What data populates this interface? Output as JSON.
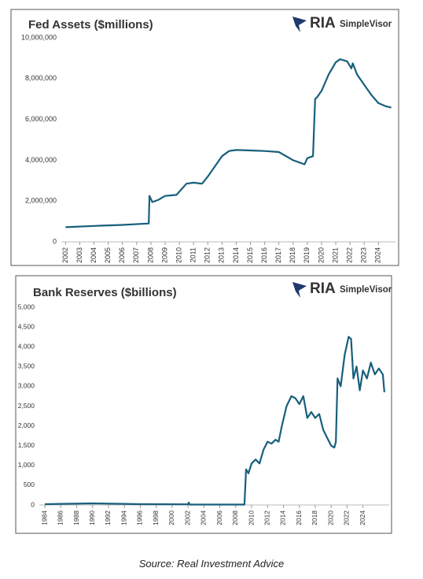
{
  "chart_data": [
    {
      "type": "line",
      "title": "Fed Assets ($millions)",
      "annotations": [
        "RIA",
        "SimpleVisor"
      ],
      "color": "#175f7c",
      "grid": false,
      "xlim": [
        2001.7,
        2025.2
      ],
      "ylim": [
        0,
        10000000
      ],
      "xticks": [
        2002,
        2003,
        2004,
        2005,
        2006,
        2007,
        2008,
        2009,
        2010,
        2011,
        2012,
        2013,
        2014,
        2015,
        2016,
        2017,
        2018,
        2019,
        2020,
        2021,
        2022,
        2023,
        2024
      ],
      "yticks": [
        0,
        {
          "value": 2000000,
          "label": "2,000,000"
        },
        {
          "value": 4000000,
          "label": "4,000,000"
        },
        {
          "value": 6000000,
          "label": "6,000,000"
        },
        {
          "value": 8000000,
          "label": "8,000,000"
        },
        {
          "value": 10000000,
          "label": "10,000,000"
        }
      ],
      "x": [
        2002.0,
        2004,
        2006,
        2007.85,
        2007.9,
        2008.1,
        2008.5,
        2009,
        2009.8,
        2010.5,
        2011,
        2011.6,
        2012,
        2012.5,
        2013,
        2013.5,
        2014,
        2015,
        2016,
        2017,
        2018,
        2018.8,
        2019.0,
        2019.4,
        2019.55,
        2019.7,
        2020,
        2020.5,
        2021,
        2021.3,
        2021.8,
        2022.1,
        2022.2,
        2022.5,
        2023,
        2023.5,
        2024,
        2024.5,
        2024.9
      ],
      "values": [
        720000,
        780000,
        830000,
        900000,
        2250000,
        1950000,
        2050000,
        2250000,
        2300000,
        2850000,
        2900000,
        2850000,
        3200000,
        3700000,
        4200000,
        4450000,
        4500000,
        4480000,
        4450000,
        4400000,
        4000000,
        3800000,
        4100000,
        4200000,
        7000000,
        7100000,
        7400000,
        8200000,
        8800000,
        8950000,
        8850000,
        8500000,
        8750000,
        8200000,
        7700000,
        7200000,
        6800000,
        6650000,
        6580000
      ]
    },
    {
      "type": "line",
      "title": "Bank Reserves ($billions)",
      "annotations": [
        "RIA",
        "SimpleVisor"
      ],
      "color": "#175f7c",
      "grid": false,
      "xlim": [
        1983.3,
        2027.3
      ],
      "ylim": [
        0,
        5000
      ],
      "xticks": [
        1984,
        1986,
        1988,
        1990,
        1992,
        1994,
        1996,
        1998,
        2000,
        2002,
        2004,
        2006,
        2008,
        2010,
        2012,
        2014,
        2016,
        2018,
        2020,
        2022,
        2024
      ],
      "yticks": [
        0,
        500,
        {
          "value": 1000,
          "label": "1,000"
        },
        {
          "value": 1500,
          "label": "1,500"
        },
        {
          "value": 2000,
          "label": "2,000"
        },
        {
          "value": 2500,
          "label": "2,500"
        },
        {
          "value": 3000,
          "label": "3,000"
        },
        {
          "value": 3500,
          "label": "3,500"
        },
        {
          "value": 4000,
          "label": "4,000"
        },
        {
          "value": 4500,
          "label": "4,500"
        },
        {
          "value": 5000,
          "label": "5,000"
        }
      ],
      "x": [
        1984,
        1990,
        1996,
        2002,
        2002.1,
        2002.2,
        2009.1,
        2009.3,
        2009.6,
        2010,
        2010.5,
        2011,
        2011.5,
        2012,
        2012.5,
        2013,
        2013.4,
        2013.8,
        2014.4,
        2015,
        2015.5,
        2016,
        2016.5,
        2017,
        2017.5,
        2018,
        2018.5,
        2019,
        2019.5,
        2020,
        2020.4,
        2020.6,
        2020.8,
        2021.2,
        2021.7,
        2022.2,
        2022.5,
        2022.8,
        2023.2,
        2023.6,
        2024,
        2024.5,
        2025,
        2025.5,
        2026,
        2026.5,
        2026.7
      ],
      "values": [
        20,
        40,
        20,
        15,
        60,
        10,
        10,
        900,
        800,
        1050,
        1150,
        1050,
        1400,
        1600,
        1550,
        1650,
        1600,
        2000,
        2500,
        2750,
        2700,
        2550,
        2750,
        2200,
        2350,
        2200,
        2300,
        1900,
        1700,
        1500,
        1450,
        1600,
        3200,
        3000,
        3800,
        4250,
        4200,
        3200,
        3500,
        2900,
        3400,
        3200,
        3600,
        3300,
        3450,
        3300,
        2850
      ]
    }
  ],
  "source": "Source: Real Investment Advice"
}
